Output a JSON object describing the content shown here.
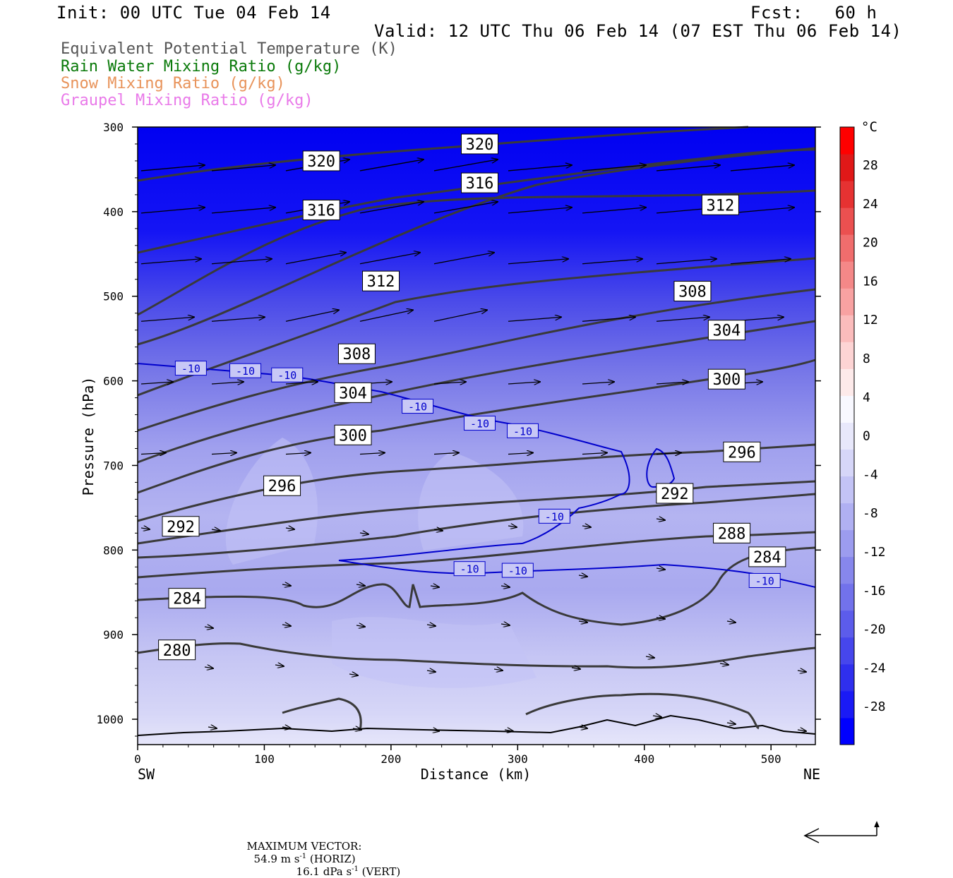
{
  "header": {
    "init": "Init: 00 UTC Tue 04 Feb 14",
    "fcst": "Fcst:   60 h",
    "valid": "Valid: 12 UTC Thu 06 Feb 14 (07 EST Thu 06 Feb 14)"
  },
  "legend": [
    {
      "text": "Equivalent Potential Temperature (K)",
      "color": "#555555"
    },
    {
      "text": "Rain Water Mixing Ratio (g/kg)",
      "color": "#0a7a0a"
    },
    {
      "text": "Snow Mixing Ratio (g/kg)",
      "color": "#e8935a"
    },
    {
      "text": "Graupel Mixing Ratio (g/kg)",
      "color": "#e97ae9"
    }
  ],
  "footer": {
    "max_vector_label": "MAXIMUM VECTOR:",
    "horiz_value": "54.9 m s",
    "horiz_suffix": " (HORIZ)",
    "vert_value": "16.1 dPa s",
    "vert_suffix": " (VERT)",
    "exponent": "-1"
  },
  "chart_data": {
    "type": "cross-section",
    "xlabel": "Distance (km)",
    "ylabel": "Pressure (hPa)",
    "xlim": [
      0,
      535
    ],
    "ylim": [
      1030,
      300
    ],
    "x_ticks": [
      "0",
      "100",
      "200",
      "300",
      "400",
      "500"
    ],
    "y_ticks": [
      "300",
      "400",
      "500",
      "600",
      "700",
      "800",
      "900",
      "1000"
    ],
    "x_left_label": "SW",
    "x_right_label": "NE",
    "colorbar": {
      "unit": "°C",
      "labels": [
        "28",
        "24",
        "20",
        "16",
        "12",
        "8",
        "4",
        "0",
        "-4",
        "-8",
        "-12",
        "-16",
        "-20",
        "-24",
        "-28"
      ],
      "colors": [
        "#0000ff",
        "#1a1af5",
        "#2f2fee",
        "#4646ec",
        "#5c5ceb",
        "#7272eb",
        "#8787ec",
        "#9c9cef",
        "#b0b0f2",
        "#c3c3f5",
        "#d6d6f8",
        "#e8e8fb",
        "#f8f8ff",
        "#fdeaea",
        "#fdd4d4",
        "#fbbcbc",
        "#f8a2a2",
        "#f48888",
        "#f06d6d",
        "#eb5050",
        "#e63232",
        "#e01818",
        "#ff0000"
      ]
    },
    "theta_e_labels": [
      {
        "text": "320",
        "x": 145,
        "p": 340
      },
      {
        "text": "320",
        "x": 270,
        "p": 320
      },
      {
        "text": "316",
        "x": 270,
        "p": 366
      },
      {
        "text": "316",
        "x": 145,
        "p": 398
      },
      {
        "text": "312",
        "x": 460,
        "p": 392
      },
      {
        "text": "312",
        "x": 192,
        "p": 482
      },
      {
        "text": "308",
        "x": 438,
        "p": 494
      },
      {
        "text": "308",
        "x": 173,
        "p": 568
      },
      {
        "text": "304",
        "x": 465,
        "p": 540
      },
      {
        "text": "304",
        "x": 170,
        "p": 614
      },
      {
        "text": "300",
        "x": 465,
        "p": 598
      },
      {
        "text": "300",
        "x": 170,
        "p": 664
      },
      {
        "text": "296",
        "x": 477,
        "p": 684
      },
      {
        "text": "296",
        "x": 114,
        "p": 724
      },
      {
        "text": "292",
        "x": 424,
        "p": 733
      },
      {
        "text": "292",
        "x": 34,
        "p": 772
      },
      {
        "text": "288",
        "x": 469,
        "p": 780
      },
      {
        "text": "284",
        "x": 497,
        "p": 808
      },
      {
        "text": "284",
        "x": 39,
        "p": 857
      },
      {
        "text": "280",
        "x": 31,
        "p": 918
      }
    ],
    "temp_labels": [
      {
        "text": "-10",
        "x": 42,
        "p": 585
      },
      {
        "text": "-10",
        "x": 85,
        "p": 588
      },
      {
        "text": "-10",
        "x": 118,
        "p": 593
      },
      {
        "text": "-10",
        "x": 221,
        "p": 630
      },
      {
        "text": "-10",
        "x": 270,
        "p": 650
      },
      {
        "text": "-10",
        "x": 304,
        "p": 659
      },
      {
        "text": "-10",
        "x": 329,
        "p": 760
      },
      {
        "text": "-10",
        "x": 262,
        "p": 822
      },
      {
        "text": "-10",
        "x": 300,
        "p": 824
      },
      {
        "text": "-10",
        "x": 495,
        "p": 836
      }
    ]
  }
}
